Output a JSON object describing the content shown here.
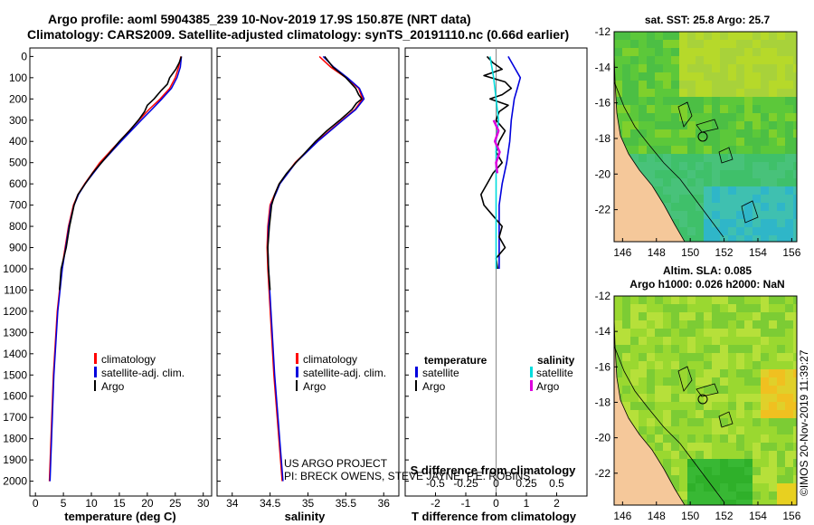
{
  "header": {
    "title_line1": "Argo profile: aoml 5904385_239 10-Nov-2019 17.9S 150.87E (NRT data)",
    "title_line2": "Climatology: CARS2009. Satellite-adjusted climatology: synTS_20191110.nc (0.66d earlier)"
  },
  "credits": {
    "project": "US ARGO PROJECT",
    "pis": "PI: BRECK OWENS, STEVE JAYNE, P.E. ROBINS",
    "stamp": "©IMOS 20-Nov-2019 11:39:27"
  },
  "colors": {
    "climatology": "#ff0000",
    "satellite": "#0000dd",
    "argo": "#000000",
    "sal_satellite": "#00dddd",
    "sal_argo": "#dd00dd",
    "land": "#f5c89a",
    "grid_zero": "#888888"
  },
  "depth_axis": {
    "ticks": [
      0,
      100,
      200,
      300,
      400,
      500,
      600,
      700,
      800,
      900,
      1000,
      1100,
      1200,
      1300,
      1400,
      1500,
      1600,
      1700,
      1800,
      1900,
      2000
    ],
    "range": [
      -40,
      2070
    ]
  },
  "chart_data": [
    {
      "type": "line",
      "id": "temperature",
      "xlabel": "temperature (deg C)",
      "xlim": [
        -1,
        31.5
      ],
      "xticks": [
        0,
        5,
        10,
        15,
        20,
        25,
        30
      ],
      "ylim": [
        -40,
        2070
      ],
      "legend": [
        "climatology",
        "satellite-adj. clim.",
        "Argo"
      ],
      "series": [
        {
          "name": "climatology",
          "depth": [
            0,
            50,
            100,
            150,
            200,
            250,
            300,
            400,
            500,
            600,
            650,
            700,
            800,
            1000,
            1200,
            1500,
            2000
          ],
          "values": [
            26.0,
            25.6,
            25.0,
            24.0,
            22.3,
            20.3,
            18.5,
            15.0,
            11.5,
            8.8,
            7.6,
            6.8,
            5.9,
            4.7,
            3.9,
            3.2,
            2.5
          ]
        },
        {
          "name": "satellite-adj. clim.",
          "depth": [
            0,
            50,
            100,
            150,
            200,
            250,
            300,
            400,
            500,
            600,
            650,
            700,
            800,
            1000,
            1200,
            1500,
            2000
          ],
          "values": [
            26.1,
            25.9,
            25.3,
            24.3,
            22.6,
            20.8,
            18.9,
            15.3,
            11.8,
            8.9,
            7.7,
            6.9,
            6.0,
            4.8,
            4.0,
            3.3,
            2.6
          ]
        },
        {
          "name": "Argo",
          "depth": [
            0,
            30,
            60,
            100,
            130,
            160,
            200,
            230,
            260,
            300,
            350,
            400,
            450,
            500,
            550,
            600,
            650,
            700,
            800,
            900,
            1000,
            1100
          ],
          "values": [
            26.1,
            25.7,
            25.1,
            24.0,
            23.6,
            22.5,
            21.2,
            20.0,
            19.5,
            18.4,
            16.8,
            15.0,
            13.4,
            11.8,
            10.2,
            8.9,
            7.6,
            6.9,
            6.1,
            5.5,
            4.6,
            4.3
          ]
        }
      ]
    },
    {
      "type": "line",
      "id": "salinity",
      "xlabel": "salinity",
      "xlim": [
        33.8,
        36.2
      ],
      "xticks": [
        34,
        34.5,
        35,
        35.5,
        36
      ],
      "ylim": [
        -40,
        2070
      ],
      "legend": [
        "climatology",
        "satellite-adj. clim.",
        "Argo"
      ],
      "series": [
        {
          "name": "climatology",
          "depth": [
            0,
            50,
            100,
            150,
            200,
            250,
            300,
            400,
            500,
            600,
            700,
            800,
            900,
            1000,
            1500,
            2000
          ],
          "values": [
            35.15,
            35.3,
            35.5,
            35.67,
            35.72,
            35.62,
            35.45,
            35.12,
            34.83,
            34.62,
            34.5,
            34.47,
            34.46,
            34.47,
            34.55,
            34.66
          ]
        },
        {
          "name": "satellite-adj. clim.",
          "depth": [
            0,
            50,
            100,
            150,
            200,
            250,
            300,
            400,
            500,
            600,
            700,
            800,
            900,
            1000,
            1500,
            2000
          ],
          "values": [
            35.2,
            35.34,
            35.52,
            35.68,
            35.74,
            35.63,
            35.46,
            35.13,
            34.84,
            34.63,
            34.51,
            34.48,
            34.47,
            34.48,
            34.56,
            34.67
          ]
        },
        {
          "name": "Argo",
          "depth": [
            0,
            50,
            100,
            150,
            180,
            200,
            220,
            250,
            300,
            350,
            400,
            450,
            500,
            550,
            600,
            650,
            700,
            800,
            900,
            1000,
            1100
          ],
          "values": [
            35.22,
            35.33,
            35.5,
            35.63,
            35.67,
            35.71,
            35.64,
            35.58,
            35.42,
            35.25,
            35.1,
            34.97,
            34.84,
            34.72,
            34.62,
            34.56,
            34.52,
            34.49,
            34.47,
            34.48,
            34.5
          ]
        }
      ]
    },
    {
      "type": "line",
      "id": "difference",
      "xlabel": "T difference from climatology",
      "xlabel_top": "S difference from climatology",
      "xlim": [
        -3,
        3
      ],
      "xticks": [
        -2,
        -1,
        0,
        1,
        2
      ],
      "sticks": [
        "-0.5",
        "-0.25",
        "0",
        "0.25",
        "0.5"
      ],
      "slim": [
        -0.75,
        0.75
      ],
      "ylim": [
        -40,
        2070
      ],
      "legend": {
        "temperature_header": "temperature",
        "salinity_header": "salinity",
        "t_satellite": "satellite",
        "t_argo": "Argo",
        "s_satellite": "satellite",
        "s_argo": "Argo"
      },
      "series": [
        {
          "name": "T satellite",
          "depth": [
            0,
            50,
            100,
            150,
            200,
            300,
            400,
            500,
            600,
            700,
            800,
            900,
            1000
          ],
          "values": [
            0.4,
            0.6,
            0.8,
            0.7,
            0.6,
            0.5,
            0.45,
            0.35,
            0.2,
            0.1,
            0.1,
            0.1,
            0.1
          ]
        },
        {
          "name": "T Argo",
          "depth": [
            0,
            30,
            60,
            90,
            120,
            150,
            180,
            200,
            230,
            260,
            300,
            350,
            400,
            450,
            500,
            550,
            600,
            650,
            700,
            750,
            800,
            850,
            900,
            950,
            1000
          ],
          "values": [
            -0.3,
            -0.1,
            0.2,
            -0.4,
            0.3,
            0.5,
            0.2,
            -0.2,
            0.4,
            0.1,
            0.0,
            0.3,
            0.1,
            0.0,
            0.2,
            -0.1,
            -0.3,
            -0.5,
            -0.4,
            -0.1,
            0.2,
            0.1,
            0.3,
            0.0,
            0.05
          ]
        },
        {
          "name": "S satellite",
          "depth": [
            0,
            100,
            200,
            300,
            400,
            500,
            600,
            700,
            800,
            900,
            1000
          ],
          "values": [
            -0.05,
            -0.02,
            0.0,
            0.02,
            0.0,
            0.0,
            0.0,
            0.0,
            0.0,
            0.0,
            0.0
          ]
        },
        {
          "name": "S Argo",
          "depth": [
            300,
            350,
            400,
            450,
            500,
            550
          ],
          "values": [
            -0.02,
            0.02,
            -0.01,
            0.03,
            0.0,
            0.01
          ]
        }
      ]
    },
    {
      "type": "heatmap",
      "id": "sst_map",
      "title": "sat. SST: 25.8 Argo: 25.7",
      "xticks": [
        146,
        148,
        150,
        152,
        154,
        156
      ],
      "yticks": [
        -12,
        -14,
        -16,
        -18,
        -20,
        -22
      ],
      "xlim": [
        145.5,
        156.3
      ],
      "ylim": [
        -23.8,
        -12
      ]
    },
    {
      "type": "heatmap",
      "id": "sla_map",
      "title_line1": "Altim. SLA: 0.085",
      "title_line2": "Argo h1000: 0.026 h2000: NaN",
      "xticks": [
        146,
        148,
        150,
        152,
        154,
        156
      ],
      "yticks": [
        -12,
        -14,
        -16,
        -18,
        -20,
        -22
      ],
      "xlim": [
        145.5,
        156.3
      ],
      "ylim": [
        -23.8,
        -12
      ]
    }
  ]
}
